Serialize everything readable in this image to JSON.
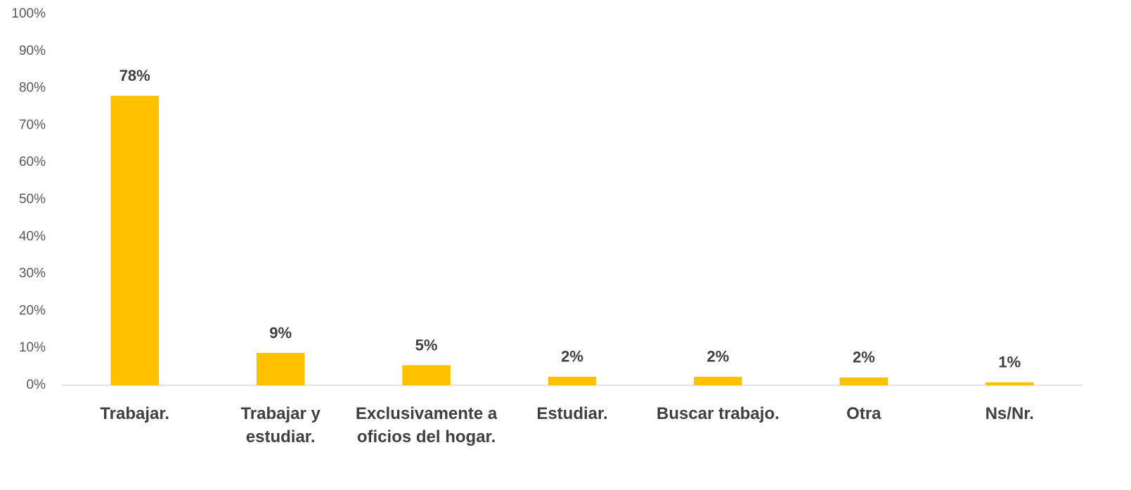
{
  "chart_data": {
    "type": "bar",
    "categories": [
      "Trabajar.",
      "Trabajar y estudiar.",
      "Exclusivamente a oficios del hogar.",
      "Estudiar.",
      "Buscar trabajo.",
      "Otra",
      "Ns/Nr."
    ],
    "values": [
      78,
      8.7,
      5.4,
      2.3,
      2.3,
      2.1,
      0.8
    ],
    "value_labels": [
      "78%",
      "9%",
      "5%",
      "2%",
      "2%",
      "2%",
      "1%"
    ],
    "color": "#ffc000",
    "ylim": [
      0,
      100
    ],
    "yticks": [
      {
        "value": 0,
        "label": "0%"
      },
      {
        "value": 10,
        "label": "10%"
      },
      {
        "value": 20,
        "label": "20%"
      },
      {
        "value": 30,
        "label": "30%"
      },
      {
        "value": 40,
        "label": "40%"
      },
      {
        "value": 50,
        "label": "50%"
      },
      {
        "value": 60,
        "label": "60%"
      },
      {
        "value": 70,
        "label": "70%"
      },
      {
        "value": 80,
        "label": "80%"
      },
      {
        "value": 90,
        "label": "90%"
      },
      {
        "value": 100,
        "label": "100%"
      }
    ],
    "grid": false
  }
}
